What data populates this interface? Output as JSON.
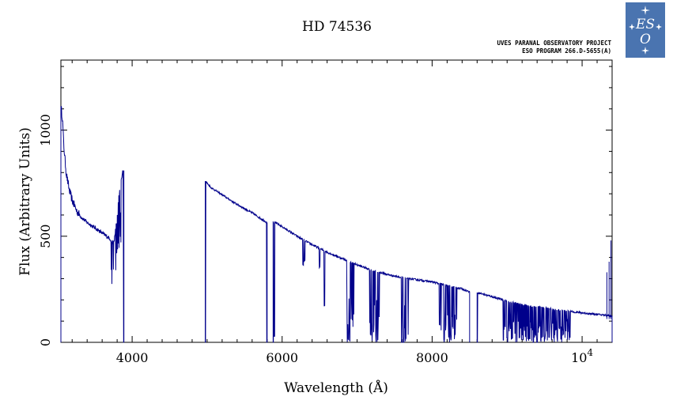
{
  "chart_data": {
    "type": "line",
    "title": "HD 74536",
    "xlabel": "Wavelength (Å)",
    "ylabel": "Flux (Arbitrary Units)",
    "xlim": [
      3050,
      10400
    ],
    "ylim": [
      0,
      1330
    ],
    "xticks": [
      {
        "value": 4000,
        "label": "4000"
      },
      {
        "value": 6000,
        "label": "6000"
      },
      {
        "value": 8000,
        "label": "8000"
      },
      {
        "value": 10000,
        "label": "10",
        "exp": "4"
      }
    ],
    "yticks": [
      {
        "value": 0,
        "label": "0"
      },
      {
        "value": 500,
        "label": "500"
      },
      {
        "value": 1000,
        "label": "1000"
      }
    ],
    "line_color": "#00008b",
    "segments": [
      [
        [
          3050,
          1110
        ],
        [
          3070,
          1060
        ],
        [
          3090,
          920
        ],
        [
          3120,
          800
        ],
        [
          3160,
          720
        ],
        [
          3200,
          670
        ],
        [
          3260,
          620
        ],
        [
          3320,
          590
        ],
        [
          3400,
          565
        ],
        [
          3480,
          545
        ],
        [
          3560,
          525
        ],
        [
          3640,
          505
        ],
        [
          3700,
          490
        ],
        [
          3740,
          470
        ],
        [
          3760,
          480
        ],
        [
          3790,
          560
        ],
        [
          3820,
          680
        ],
        [
          3850,
          760
        ],
        [
          3870,
          800
        ],
        [
          3890,
          810
        ]
      ],
      [
        [
          4975,
          760
        ],
        [
          5050,
          730
        ],
        [
          5200,
          695
        ],
        [
          5400,
          650
        ],
        [
          5600,
          610
        ],
        [
          5750,
          575
        ],
        [
          5800,
          565
        ]
      ],
      [
        [
          5880,
          570
        ],
        [
          6000,
          545
        ],
        [
          6200,
          500
        ],
        [
          6400,
          460
        ],
        [
          6600,
          425
        ],
        [
          6800,
          395
        ],
        [
          7000,
          365
        ],
        [
          7200,
          340
        ],
        [
          7400,
          320
        ],
        [
          7600,
          305
        ],
        [
          7800,
          295
        ],
        [
          8000,
          285
        ],
        [
          8200,
          268
        ],
        [
          8400,
          252
        ],
        [
          8500,
          238
        ]
      ],
      [
        [
          8600,
          235
        ],
        [
          8700,
          225
        ],
        [
          8900,
          205
        ],
        [
          9100,
          185
        ],
        [
          9300,
          172
        ],
        [
          9500,
          162
        ],
        [
          9700,
          152
        ],
        [
          9900,
          143
        ],
        [
          10100,
          135
        ],
        [
          10250,
          130
        ],
        [
          10400,
          125
        ]
      ]
    ],
    "absorption_dips": [
      {
        "x": 3890,
        "depth": 1.0
      },
      {
        "x": 4975,
        "depth": 1.0
      },
      {
        "x": 5800,
        "depth": 1.0
      },
      {
        "x": 5880,
        "depth": 1.0
      },
      {
        "x": 5895,
        "depth": 0.95
      },
      {
        "x": 6280,
        "depth": 0.25
      },
      {
        "x": 6300,
        "depth": 0.2
      },
      {
        "x": 6500,
        "depth": 0.2
      },
      {
        "x": 6563,
        "depth": 0.6
      },
      {
        "x": 6870,
        "depth": 0.95
      },
      {
        "x": 6885,
        "depth": 0.9
      },
      {
        "x": 6900,
        "depth": 0.85
      },
      {
        "x": 7180,
        "depth": 0.6
      },
      {
        "x": 7200,
        "depth": 0.85
      },
      {
        "x": 7250,
        "depth": 0.9
      },
      {
        "x": 7280,
        "depth": 0.6
      },
      {
        "x": 7594,
        "depth": 1.0
      },
      {
        "x": 7620,
        "depth": 1.0
      },
      {
        "x": 7650,
        "depth": 0.9
      },
      {
        "x": 8100,
        "depth": 0.7
      },
      {
        "x": 8160,
        "depth": 0.9
      },
      {
        "x": 8230,
        "depth": 0.8
      },
      {
        "x": 8300,
        "depth": 0.5
      },
      {
        "x": 8540,
        "depth": 1.0
      },
      {
        "x": 8600,
        "depth": 1.0
      },
      {
        "x": 8950,
        "depth": 0.95
      },
      {
        "x": 9000,
        "depth": 0.9
      },
      {
        "x": 9300,
        "depth": 0.9
      },
      {
        "x": 9350,
        "depth": 1.0
      },
      {
        "x": 9400,
        "depth": 1.0
      },
      {
        "x": 9450,
        "depth": 0.95
      },
      {
        "x": 9500,
        "depth": 0.9
      },
      {
        "x": 9560,
        "depth": 0.85
      },
      {
        "x": 9650,
        "depth": 0.6
      },
      {
        "x": 9720,
        "depth": 0.5
      },
      {
        "x": 9800,
        "depth": 0.3
      }
    ]
  },
  "credits": {
    "line1": "UVES PARANAL OBSERVATORY PROJECT",
    "line2": "ESO PROGRAM 266.D-5655(A)"
  },
  "logo": {
    "text_top": "ES",
    "text_bottom": "O"
  }
}
